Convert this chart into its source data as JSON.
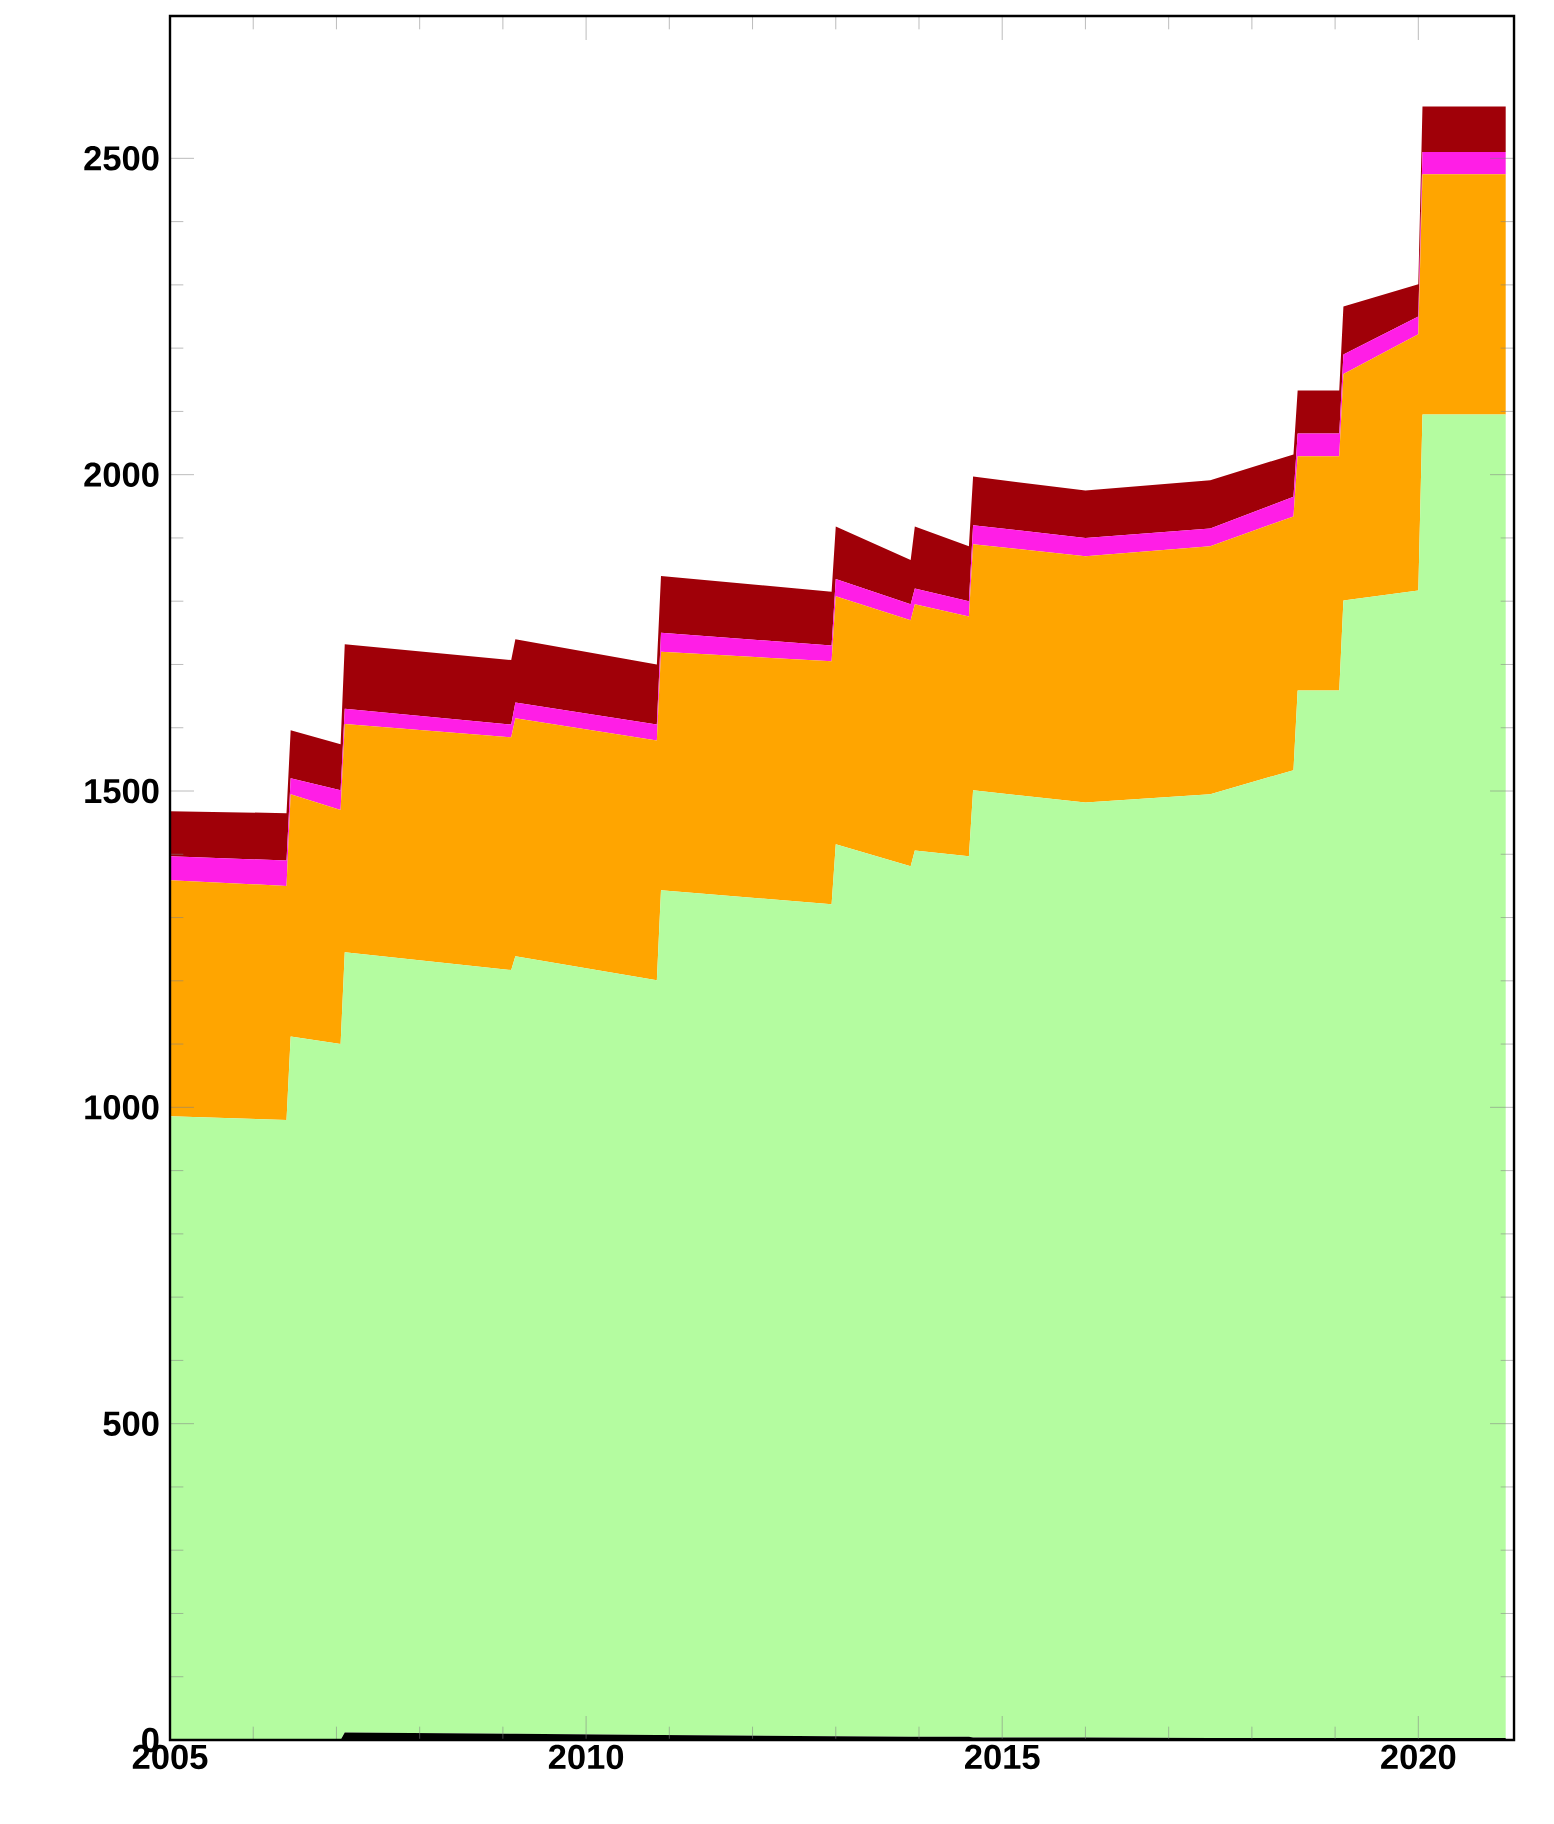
{
  "chart_data": {
    "type": "area",
    "stacked": true,
    "x": [
      2005.0,
      2006.4,
      2006.45,
      2007.05,
      2007.1,
      2009.1,
      2009.15,
      2010.85,
      2010.9,
      2012.95,
      2013.0,
      2013.9,
      2013.95,
      2014.6,
      2014.65,
      2016.0,
      2017.5,
      2018.5,
      2018.55,
      2019.05,
      2019.1,
      2020.0,
      2020.05,
      2021.05
    ],
    "xlim": [
      2005,
      2021.15
    ],
    "ylim": [
      0,
      2725
    ],
    "xticks": [
      2005,
      2010,
      2015,
      2020
    ],
    "yticks": [
      0,
      500,
      1000,
      1500,
      2000,
      2500
    ],
    "series": [
      {
        "color": "#000000",
        "values": [
          0,
          0,
          0,
          0,
          12,
          10,
          10,
          8,
          8,
          6,
          6,
          5,
          5,
          5,
          4,
          4,
          3,
          3,
          3,
          3,
          3,
          3,
          3,
          3
        ]
      },
      {
        "color": "#b4fca0",
        "values": [
          986,
          980,
          1112,
          1100,
          1233,
          1207,
          1229,
          1193,
          1335,
          1315,
          1410,
          1376,
          1401,
          1392,
          1497,
          1478,
          1492,
          1530,
          1656,
          1656,
          1798,
          1814,
          2092,
          2092
        ]
      },
      {
        "color": "#ffa500",
        "values": [
          373,
          370,
          383,
          370,
          361,
          368,
          376,
          379,
          377,
          384,
          392,
          389,
          389,
          379,
          389,
          389,
          392,
          401,
          370,
          370,
          358,
          405,
          380,
          380
        ]
      },
      {
        "color": "#ff1ee6",
        "values": [
          38,
          40,
          25,
          31,
          24,
          20,
          25,
          25,
          30,
          25,
          27,
          25,
          25,
          24,
          30,
          29,
          28,
          31,
          36,
          36,
          31,
          28,
          35,
          35
        ]
      },
      {
        "color": "#a00008",
        "values": [
          71,
          75,
          76,
          73,
          102,
          102,
          100,
          95,
          90,
          85,
          83,
          70,
          98,
          87,
          77,
          75,
          76,
          67,
          68,
          68,
          76,
          51,
          72,
          72
        ]
      }
    ]
  }
}
